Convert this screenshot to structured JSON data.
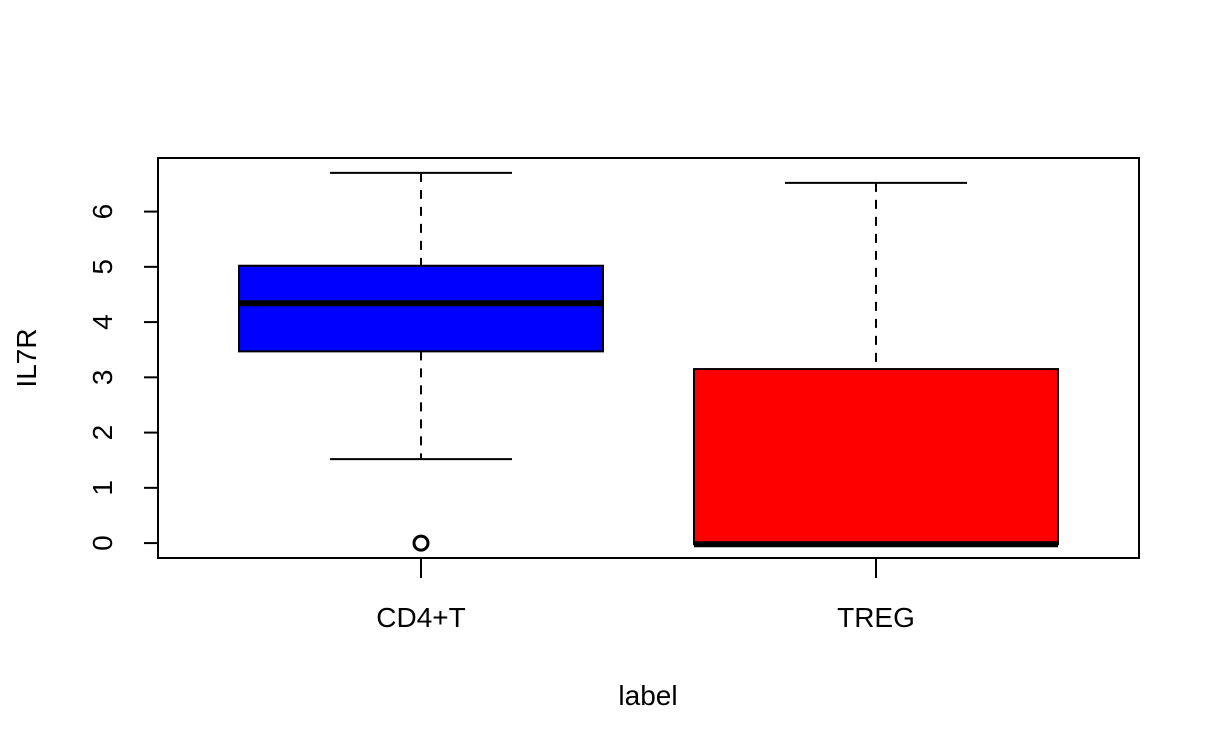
{
  "chart_data": {
    "type": "box",
    "xlabel": "label",
    "ylabel": "IL7R",
    "ylim": [
      -0.27,
      6.97
    ],
    "yticks": [
      0,
      1,
      2,
      3,
      4,
      5,
      6
    ],
    "categories": [
      "CD4+T",
      "TREG"
    ],
    "boxes": [
      {
        "category": "CD4+T",
        "color": "#0000ff",
        "whisker_low": 1.52,
        "q1": 3.47,
        "median": 4.34,
        "q3": 5.02,
        "whisker_high": 6.7,
        "outliers": [
          0
        ]
      },
      {
        "category": "TREG",
        "color": "#ff0000",
        "whisker_low": -0.02,
        "q1": -0.02,
        "median": -0.02,
        "q3": 3.15,
        "whisker_high": 6.52,
        "outliers": []
      }
    ]
  }
}
